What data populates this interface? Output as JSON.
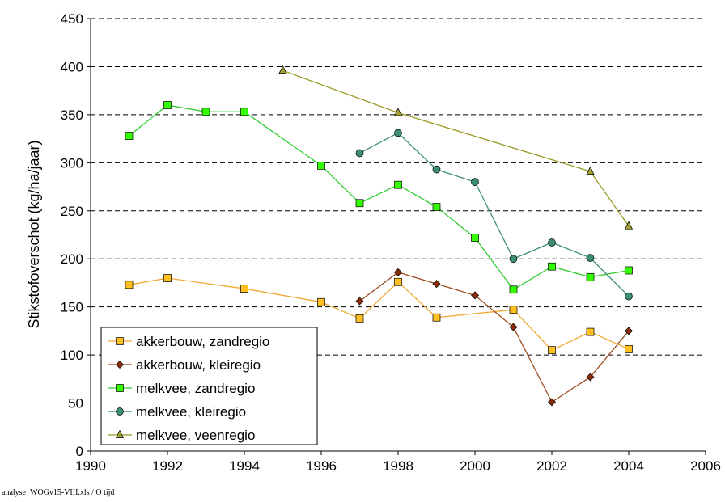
{
  "chart_data": {
    "type": "line",
    "y_label": "Stikstofoverschot (kg/ha/jaar)",
    "footer": "analyse_WOGv15-VIII.xls / O tijd",
    "xlim": [
      1990,
      2006
    ],
    "xticks": [
      1990,
      1992,
      1994,
      1996,
      1998,
      2000,
      2002,
      2004,
      2006
    ],
    "ylim": [
      0,
      450
    ],
    "yticks": [
      0,
      50,
      100,
      150,
      200,
      250,
      300,
      350,
      400,
      450
    ],
    "grid": true,
    "legend": "lower left",
    "series": [
      {
        "name": "akkerbouw, zandregio",
        "color": "#f0a830",
        "fill": "#ffc020",
        "marker": "square",
        "x": [
          1991,
          1992,
          1994,
          1996,
          1997,
          1998,
          1999,
          2001,
          2002,
          2003,
          2004
        ],
        "values": [
          173,
          180,
          169,
          155,
          138,
          176,
          139,
          147,
          105,
          124,
          106
        ]
      },
      {
        "name": "akkerbouw, kleiregio",
        "color": "#9c4a1c",
        "fill": "#8b2c08",
        "marker": "diamond",
        "x": [
          1997,
          1998,
          1999,
          2000,
          2001,
          2002,
          2003,
          2004
        ],
        "values": [
          156,
          186,
          174,
          162,
          129,
          51,
          77,
          125
        ]
      },
      {
        "name": "melkvee, zandregio",
        "color": "#33cc33",
        "fill": "#33ff00",
        "marker": "square",
        "x": [
          1991,
          1992,
          1993,
          1994,
          1996,
          1997,
          1998,
          1999,
          2000,
          2001,
          2002,
          2003,
          2004
        ],
        "values": [
          328,
          360,
          353,
          353,
          297,
          258,
          277,
          254,
          222,
          168,
          192,
          181,
          188
        ]
      },
      {
        "name": "melkvee, kleiregio",
        "color": "#3f8f7f",
        "fill": "#3c9070",
        "marker": "circle",
        "x": [
          1997,
          1998,
          1999,
          2000,
          2001,
          2002,
          2003,
          2004
        ],
        "values": [
          310,
          331,
          293,
          280,
          200,
          217,
          201,
          161
        ]
      },
      {
        "name": "melkvee, veenregio",
        "color": "#999922",
        "fill": "#a0a030",
        "marker": "triangle",
        "x": [
          1995,
          1998,
          2003,
          2004
        ],
        "values": [
          396,
          352,
          291,
          234
        ]
      }
    ]
  }
}
